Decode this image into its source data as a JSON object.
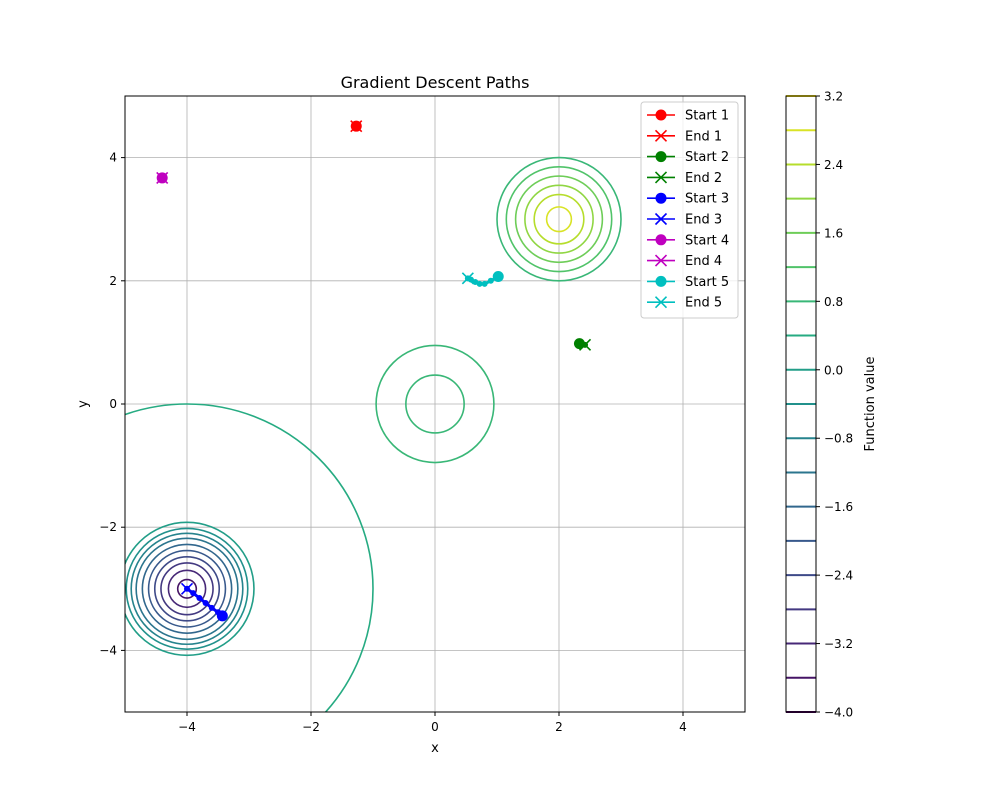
{
  "chart_data": {
    "type": "line",
    "title": "Gradient Descent Paths",
    "xlabel": "x",
    "ylabel": "y",
    "xlim": [
      -5,
      5
    ],
    "ylim": [
      -5,
      5
    ],
    "xticks": [
      -4,
      -2,
      0,
      2,
      4
    ],
    "yticks": [
      -4,
      -2,
      0,
      2,
      4
    ],
    "xtick_labels": [
      "−4",
      "−2",
      "0",
      "2",
      "4"
    ],
    "ytick_labels": [
      "−4",
      "−2",
      "0",
      "2",
      "4"
    ],
    "grid": true,
    "legend_position": "top-right",
    "background_contours": [
      {
        "center": [
          2,
          3
        ],
        "radii": [
          0.2,
          0.4,
          0.55,
          0.7,
          0.85,
          1.0
        ],
        "levels": [
          2.8,
          2.4,
          2.0,
          1.6,
          1.2,
          0.8
        ]
      },
      {
        "center": [
          0,
          0
        ],
        "radii": [
          0.47,
          0.95
        ],
        "levels": [
          0.8,
          0.8
        ]
      },
      {
        "center": [
          -4,
          -3
        ],
        "radii": [
          0.15,
          0.3,
          0.42,
          0.52,
          0.62,
          0.72,
          0.82,
          0.9,
          0.98,
          1.08
        ],
        "levels": [
          -3.6,
          -3.2,
          -2.8,
          -2.4,
          -2.0,
          -1.6,
          -1.2,
          -0.8,
          -0.4,
          0.0
        ]
      },
      {
        "center": [
          -4,
          -3
        ],
        "radii": [
          3.0
        ],
        "levels": [
          0.4
        ]
      }
    ],
    "series": [
      {
        "name": "Start 1",
        "kind": "start",
        "color": "#ff0000",
        "x": [
          -1.27
        ],
        "y": [
          4.51
        ]
      },
      {
        "name": "End 1",
        "kind": "end",
        "color": "#ff0000",
        "x": [
          -1.27
        ],
        "y": [
          4.51
        ]
      },
      {
        "name": "Start 2",
        "kind": "start",
        "color": "#008000",
        "x": [
          2.33
        ],
        "y": [
          0.98
        ]
      },
      {
        "name": "End 2",
        "kind": "end",
        "color": "#008000",
        "x": [
          2.42
        ],
        "y": [
          0.96
        ]
      },
      {
        "name": "Start 3",
        "kind": "start",
        "color": "#0000ff",
        "x": [
          -3.43
        ],
        "y": [
          -3.44
        ]
      },
      {
        "name": "End 3",
        "kind": "end",
        "color": "#0000ff",
        "x": [
          -4.0
        ],
        "y": [
          -3.0
        ]
      },
      {
        "name": "Start 4",
        "kind": "start",
        "color": "#bf00bf",
        "x": [
          -4.4
        ],
        "y": [
          3.67
        ]
      },
      {
        "name": "End 4",
        "kind": "end",
        "color": "#bf00bf",
        "x": [
          -4.4
        ],
        "y": [
          3.67
        ]
      },
      {
        "name": "Start 5",
        "kind": "start",
        "color": "#00bfbf",
        "x": [
          1.02
        ],
        "y": [
          2.07
        ]
      },
      {
        "name": "End 5",
        "kind": "end",
        "color": "#00bfbf",
        "x": [
          0.53
        ],
        "y": [
          2.04
        ]
      }
    ],
    "paths": [
      {
        "color": "#0000ff",
        "x": [
          -3.43,
          -3.5,
          -3.6,
          -3.7,
          -3.8,
          -3.9,
          -4.0
        ],
        "y": [
          -3.44,
          -3.38,
          -3.31,
          -3.23,
          -3.15,
          -3.07,
          -3.0
        ]
      },
      {
        "color": "#00bfbf",
        "x": [
          1.02,
          0.9,
          0.8,
          0.72,
          0.65,
          0.58,
          0.53
        ],
        "y": [
          2.07,
          2.0,
          1.95,
          1.95,
          1.98,
          2.02,
          2.04
        ]
      },
      {
        "color": "#008000",
        "x": [
          2.33,
          2.42
        ],
        "y": [
          0.98,
          0.96
        ]
      }
    ],
    "colorbar": {
      "label": "Function value",
      "ticks": [
        3.2,
        2.4,
        1.6,
        0.8,
        0.0,
        -0.8,
        -1.6,
        -2.4,
        -3.2,
        -4.0
      ],
      "tick_labels": [
        "3.2",
        "2.4",
        "1.6",
        "0.8",
        "0.0",
        "−0.8",
        "−1.6",
        "−2.4",
        "−3.2",
        "−4.0"
      ],
      "min": -4.0,
      "max": 3.2,
      "levels": [
        -4.0,
        -3.6,
        -3.2,
        -2.8,
        -2.4,
        -2.0,
        -1.6,
        -1.2,
        -0.8,
        -0.4,
        0.0,
        0.4,
        0.8,
        1.2,
        1.6,
        2.0,
        2.4,
        2.8,
        3.2
      ],
      "colormap": [
        "#440154",
        "#482475",
        "#414487",
        "#355f8d",
        "#2a788e",
        "#21918c",
        "#22a884",
        "#44bf70",
        "#7ad151",
        "#bddf26",
        "#fde725"
      ]
    }
  }
}
